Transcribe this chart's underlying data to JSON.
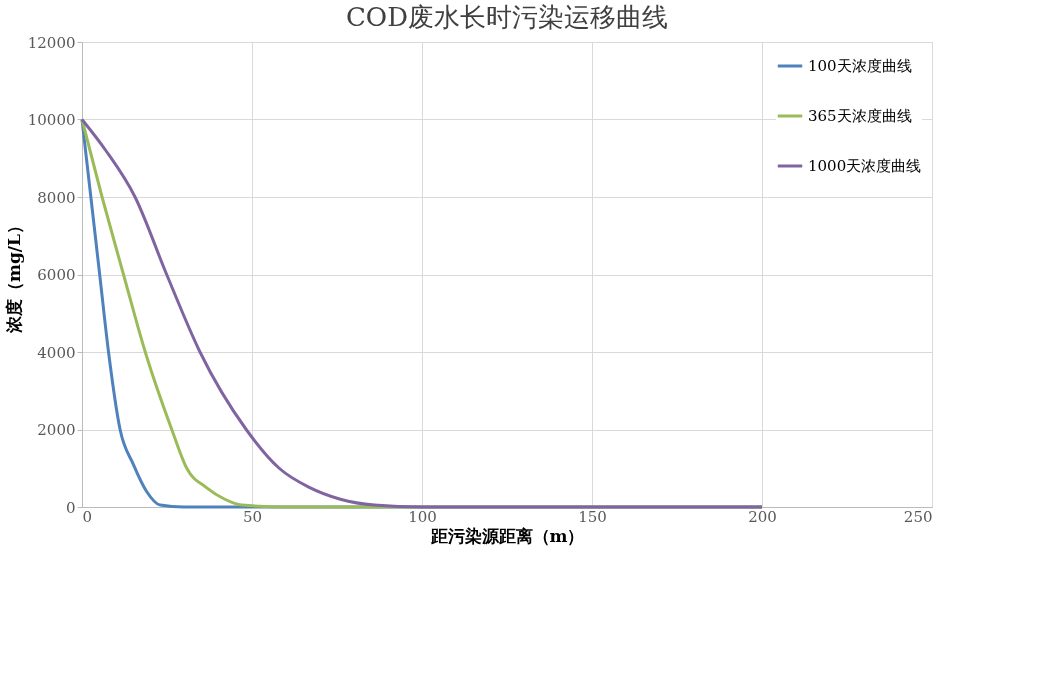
{
  "chart_data": {
    "type": "line",
    "title": "COD废水长时污染运移曲线",
    "xlabel": "距污染源距离（m）",
    "ylabel": "浓度（mg/L）",
    "xlim": [
      0,
      250
    ],
    "xticks": [
      0,
      50,
      100,
      150,
      200,
      250
    ],
    "ylim": [
      0,
      12000
    ],
    "yticks": [
      0,
      2000,
      4000,
      6000,
      8000,
      10000,
      12000
    ],
    "grid": true,
    "legend": "top right",
    "marker": "none",
    "line_style": "solid",
    "series": [
      {
        "name": "100天浓度曲线",
        "color": "#4f81bd",
        "x": [
          0,
          2.6,
          5.2,
          7.8,
          11.2,
          15.1,
          19,
          23,
          30,
          50,
          100,
          150,
          200
        ],
        "values": [
          10000,
          8000,
          6000,
          4000,
          2000,
          1100,
          400,
          50,
          0,
          0,
          0,
          0,
          0
        ]
      },
      {
        "name": "365天浓度曲线",
        "color": "#9bbb59",
        "x": [
          0,
          5.9,
          12.2,
          18.6,
          26.4,
          30.8,
          36.6,
          42,
          47,
          60,
          100,
          150,
          200
        ],
        "values": [
          10000,
          8000,
          6000,
          4000,
          2000,
          1000,
          500,
          200,
          50,
          0,
          0,
          0,
          0
        ]
      },
      {
        "name": "1000天浓度曲线",
        "color": "#8064a2",
        "x": [
          0,
          7,
          15.6,
          24.9,
          34.7,
          48.3,
          58,
          67,
          76,
          86,
          100,
          150,
          200
        ],
        "values": [
          10000,
          9200,
          8000,
          6000,
          4000,
          2000,
          1000,
          500,
          200,
          50,
          0,
          0,
          0
        ]
      }
    ]
  }
}
